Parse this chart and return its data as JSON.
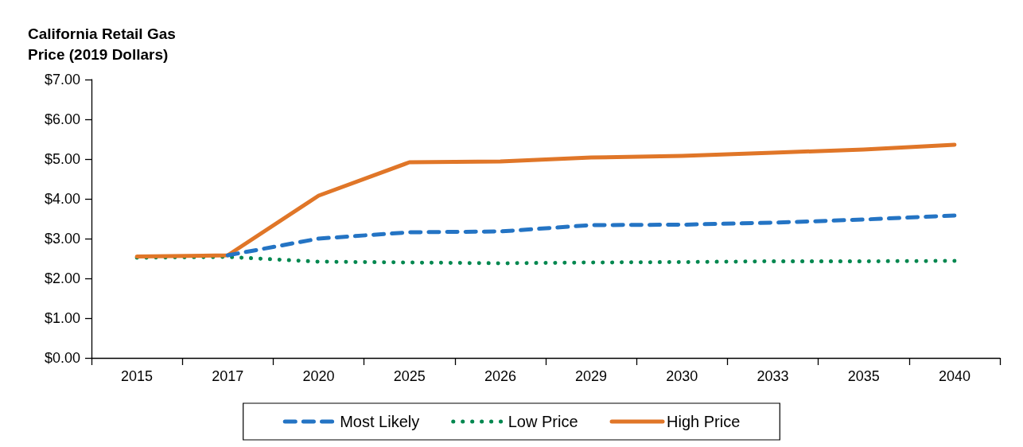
{
  "chart_data": {
    "type": "line",
    "ylabel": "California Retail Gas\nPrice (2019 Dollars)",
    "categories": [
      "2015",
      "2017",
      "2020",
      "2025",
      "2026",
      "2029",
      "2030",
      "2033",
      "2035",
      "2040"
    ],
    "series": [
      {
        "name": "Most Likely",
        "color": "#2474c4",
        "line_style": "dashed",
        "values": [
          null,
          2.58,
          3.0,
          3.16,
          3.18,
          3.34,
          3.35,
          3.4,
          3.48,
          3.58
        ]
      },
      {
        "name": "Low Price",
        "color": "#00874f",
        "line_style": "dotted",
        "values": [
          2.52,
          2.54,
          2.42,
          2.4,
          2.38,
          2.4,
          2.41,
          2.43,
          2.43,
          2.44
        ]
      },
      {
        "name": "High Price",
        "color": "#e07628",
        "line_style": "solid",
        "values": [
          2.55,
          2.58,
          4.08,
          4.92,
          4.94,
          5.04,
          5.08,
          5.16,
          5.24,
          5.36
        ]
      }
    ],
    "ylim": [
      0,
      7
    ],
    "yticks": [
      {
        "value": 0,
        "label": "$0.00"
      },
      {
        "value": 1,
        "label": "$1.00"
      },
      {
        "value": 2,
        "label": "$2.00"
      },
      {
        "value": 3,
        "label": "$3.00"
      },
      {
        "value": 4,
        "label": "$4.00"
      },
      {
        "value": 5,
        "label": "$5.00"
      },
      {
        "value": 6,
        "label": "$6.00"
      },
      {
        "value": 7,
        "label": "$7.00"
      }
    ],
    "grid": false,
    "legend": "bottom",
    "marker": "none"
  }
}
